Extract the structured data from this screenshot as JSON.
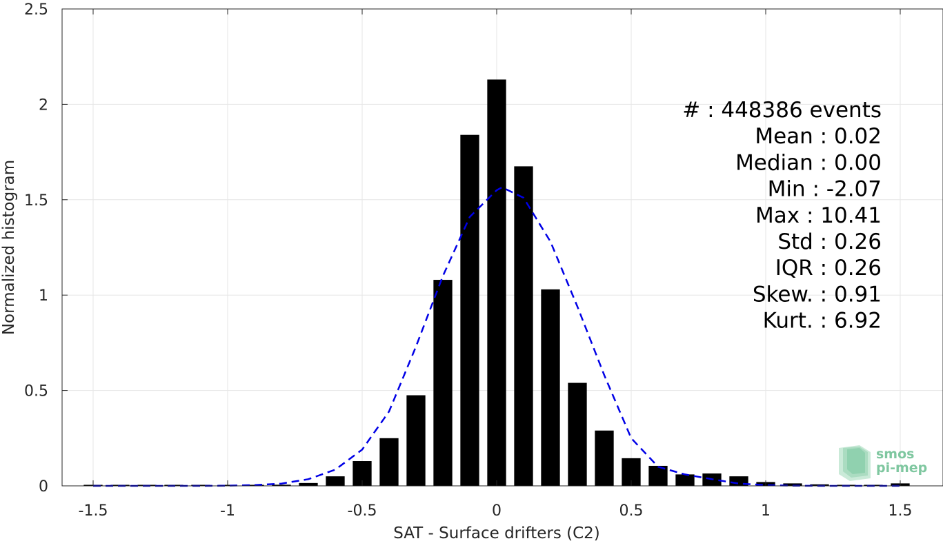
{
  "chart_data": {
    "type": "bar",
    "xlabel": "SAT - Surface drifters (C2)",
    "ylabel": "Normalized histogram",
    "xlim": [
      -1.6,
      1.6
    ],
    "ylim": [
      0,
      2.5
    ],
    "xticks": [
      -1.5,
      -1,
      -0.5,
      0,
      0.5,
      1,
      1.5
    ],
    "xtick_labels": [
      "-1.5",
      "-1",
      "-0.5",
      "0",
      "0.5",
      "1",
      "1.5"
    ],
    "yticks": [
      0,
      0.5,
      1,
      1.5,
      2,
      2.5
    ],
    "ytick_labels": [
      "0",
      "0.5",
      "1",
      "1.5",
      "2",
      "2.5"
    ],
    "grid": true,
    "bar_width": 0.07,
    "bars": {
      "x": [
        -1.5,
        -1.4,
        -1.3,
        -1.2,
        -1.1,
        -1.0,
        -0.9,
        -0.8,
        -0.7,
        -0.6,
        -0.5,
        -0.4,
        -0.3,
        -0.2,
        -0.1,
        0.0,
        0.1,
        0.2,
        0.3,
        0.4,
        0.5,
        0.6,
        0.7,
        0.8,
        0.9,
        1.0,
        1.1,
        1.2,
        1.3,
        1.4,
        1.5
      ],
      "values": [
        0.002,
        0.002,
        0.002,
        0.002,
        0.002,
        0.002,
        0.004,
        0.006,
        0.015,
        0.05,
        0.13,
        0.25,
        0.475,
        1.08,
        1.84,
        2.13,
        1.675,
        1.03,
        0.54,
        0.29,
        0.145,
        0.105,
        0.06,
        0.065,
        0.05,
        0.02,
        0.013,
        0.008,
        0.005,
        0.005,
        0.013
      ]
    },
    "fit_curve": {
      "style": "dashed",
      "color": "#0000e6",
      "x": [
        -1.5,
        -1.4,
        -1.3,
        -1.2,
        -1.1,
        -1.0,
        -0.9,
        -0.8,
        -0.7,
        -0.6,
        -0.5,
        -0.4,
        -0.3,
        -0.2,
        -0.1,
        0.0,
        0.02,
        0.1,
        0.2,
        0.3,
        0.4,
        0.5,
        0.6,
        0.7,
        0.8,
        0.9,
        1.0,
        1.1,
        1.2,
        1.3,
        1.4,
        1.5
      ],
      "y": [
        0.0,
        0.0,
        0.0,
        0.0,
        0.0,
        0.001,
        0.004,
        0.012,
        0.035,
        0.085,
        0.19,
        0.39,
        0.73,
        1.1,
        1.41,
        1.55,
        1.565,
        1.51,
        1.28,
        0.94,
        0.58,
        0.25,
        0.1,
        0.06,
        0.035,
        0.012,
        0.004,
        0.001,
        0.0,
        0.0,
        0.0,
        0.0
      ]
    },
    "bar_color": "#000000"
  },
  "stats": [
    {
      "label": "#  ",
      "value": ": 448386 events"
    },
    {
      "label": "Mean ",
      "value": ": 0.02"
    },
    {
      "label": "Median ",
      "value": ": 0.00"
    },
    {
      "label": "Min ",
      "value": ": -2.07"
    },
    {
      "label": "Max ",
      "value": ": 10.41"
    },
    {
      "label": "Std ",
      "value": ": 0.26"
    },
    {
      "label": "IQR ",
      "value": ": 0.26"
    },
    {
      "label": "Skew. ",
      "value": ": 0.91"
    },
    {
      "label": "Kurt. ",
      "value": ": 6.92"
    }
  ],
  "logo": {
    "line1": "smos",
    "line2": "pi-mep",
    "color": "#7fc7a0"
  }
}
